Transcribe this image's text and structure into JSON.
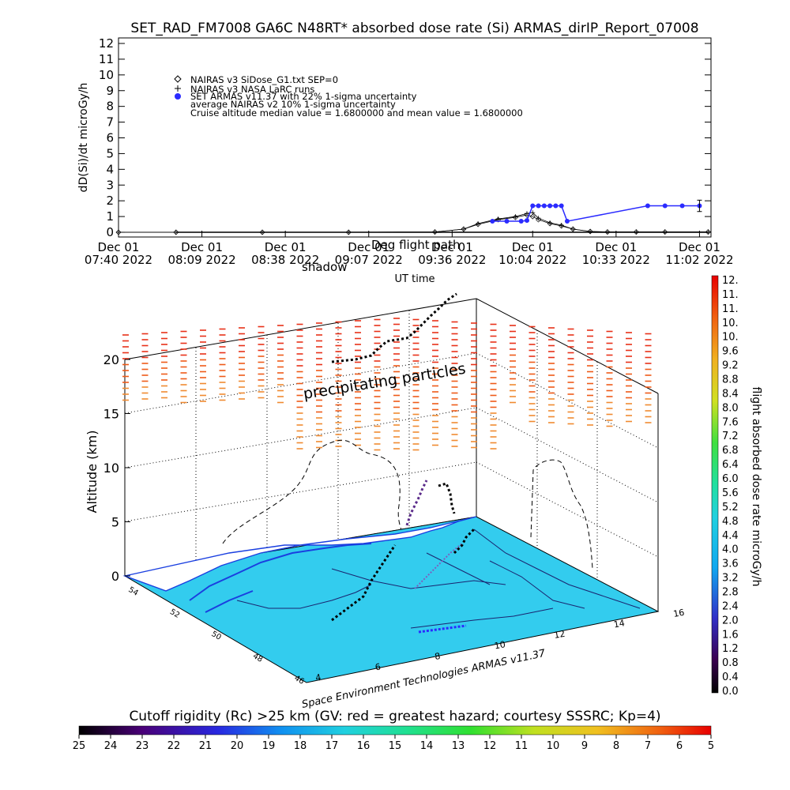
{
  "title": "SET_RAD_FM7008  GA6C N48RT* absorbed dose rate (Si) ARMAS_dirIP_Report_07008",
  "top_plot": {
    "ylabel": "dD(Si)/dt microGy/h",
    "yticks": [
      "0",
      "1",
      "2",
      "3",
      "4",
      "5",
      "6",
      "7",
      "8",
      "9",
      "10",
      "11",
      "12"
    ],
    "xticks": [
      {
        "line1": "Dec 01",
        "line2": "07:40 2022"
      },
      {
        "line1": "Dec 01",
        "line2": "08:09 2022"
      },
      {
        "line1": "Dec 01",
        "line2": "08:38 2022"
      },
      {
        "line1": "Dec 01",
        "line2": "09:07 2022"
      },
      {
        "line1": "Dec 01",
        "line2": "09:36 2022"
      },
      {
        "line1": "Dec 01",
        "line2": "10:04 2022"
      },
      {
        "line1": "Dec 01",
        "line2": "10:33 2022"
      },
      {
        "line1": "Dec 01",
        "line2": "11:02 2022"
      }
    ],
    "xlabel": "UT time",
    "legend": [
      "NAIRAS v3 SiDose_G1.txt SEP=0",
      "NAIRAS v3 NASA LaRC runs",
      "SET ARMAS v11.37 with 22% 1-sigma uncertainty",
      "average NAIRAS v2 10% 1-sigma uncertainty",
      "Cruise altitude median value = 1.6800000 and mean value = 1.6800000"
    ],
    "overlay_text_1": "Deg flight path",
    "overlay_text_2": "shadow"
  },
  "plot3d": {
    "zlabel": "Altitude (km)",
    "zticks": [
      "0",
      "5",
      "10",
      "15",
      "20"
    ],
    "lat_ticks": [
      "54",
      "52",
      "50",
      "48",
      "46"
    ],
    "lon_ticks": [
      "4",
      "6",
      "8",
      "10",
      "12",
      "14",
      "16"
    ],
    "annotation": "precipitating particles",
    "credit": "Space Environment Technologies ARMAS v11.37"
  },
  "dose_colorbar": {
    "label": "flight absorbed dose rate microGy/h",
    "ticks": [
      "12.",
      "11.",
      "11.",
      "10.",
      "10.",
      "9.6",
      "9.2",
      "8.8",
      "8.4",
      "8.0",
      "7.6",
      "7.2",
      "6.8",
      "6.4",
      "6.0",
      "5.6",
      "5.2",
      "4.8",
      "4.4",
      "4.0",
      "3.6",
      "3.2",
      "2.8",
      "2.4",
      "2.0",
      "1.6",
      "1.2",
      "0.8",
      "0.4",
      "0.0"
    ]
  },
  "rigidity_colorbar": {
    "title": "Cutoff rigidity (Rc) >25 km (GV: red = greatest hazard; courtesy SSSRC; Kp=4)",
    "ticks": [
      "25",
      "24",
      "23",
      "22",
      "21",
      "20",
      "19",
      "18",
      "17",
      "16",
      "15",
      "14",
      "13",
      "12",
      "11",
      "10",
      "9",
      "8",
      "7",
      "6",
      "5"
    ]
  },
  "chart_data": [
    {
      "type": "line",
      "title": "SET_RAD_FM7008  GA6C N48RT* absorbed dose rate (Si) ARMAS_dirIP_Report_07008",
      "xlabel": "UT time",
      "ylabel": "dD(Si)/dt microGy/h",
      "ylim": [
        0,
        12
      ],
      "xlim": [
        "07:40",
        "11:06"
      ],
      "grid": false,
      "legend_position": "upper-left",
      "series": [
        {
          "name": "NAIRAS v3 SiDose_G1.txt SEP=0",
          "marker": "diamond",
          "color": "#000000",
          "x": [
            "07:40",
            "08:00",
            "08:30",
            "09:00",
            "09:30",
            "09:40",
            "09:45",
            "09:52",
            "09:58",
            "10:02",
            "10:04",
            "10:06",
            "10:10",
            "10:14",
            "10:18",
            "10:24",
            "10:30",
            "10:40",
            "10:50",
            "11:05"
          ],
          "y": [
            0,
            0,
            0,
            0,
            0.02,
            0.2,
            0.5,
            0.8,
            0.95,
            1.1,
            1.0,
            0.8,
            0.55,
            0.4,
            0.2,
            0.05,
            0.02,
            0.02,
            0.02,
            0.02
          ]
        },
        {
          "name": "NAIRAS v3 NASA LaRC runs",
          "marker": "plus",
          "color": "#000000",
          "x": [
            "07:40",
            "08:00",
            "08:30",
            "09:00",
            "09:30",
            "09:40",
            "09:45",
            "09:52",
            "09:58",
            "10:02",
            "10:04",
            "10:06",
            "10:10",
            "10:14",
            "10:18",
            "10:24",
            "10:30",
            "10:40",
            "10:50",
            "11:05"
          ],
          "y": [
            0,
            0,
            0,
            0,
            0.02,
            0.2,
            0.55,
            0.85,
            1.0,
            1.2,
            1.25,
            0.9,
            0.6,
            0.45,
            0.2,
            0.05,
            0.02,
            0.02,
            0.02,
            0.02
          ]
        },
        {
          "name": "SET ARMAS v11.37 with 22% 1-sigma uncertainty",
          "marker": "dot",
          "color": "#2b2bff",
          "x": [
            "09:50",
            "09:55",
            "10:00",
            "10:02",
            "10:04",
            "10:06",
            "10:08",
            "10:10",
            "10:12",
            "10:14",
            "10:16",
            "10:44",
            "10:50",
            "10:56",
            "11:02"
          ],
          "y": [
            0.7,
            0.7,
            0.7,
            0.75,
            1.68,
            1.68,
            1.68,
            1.68,
            1.68,
            1.68,
            0.7,
            1.68,
            1.68,
            1.68,
            1.68
          ]
        }
      ]
    }
  ]
}
